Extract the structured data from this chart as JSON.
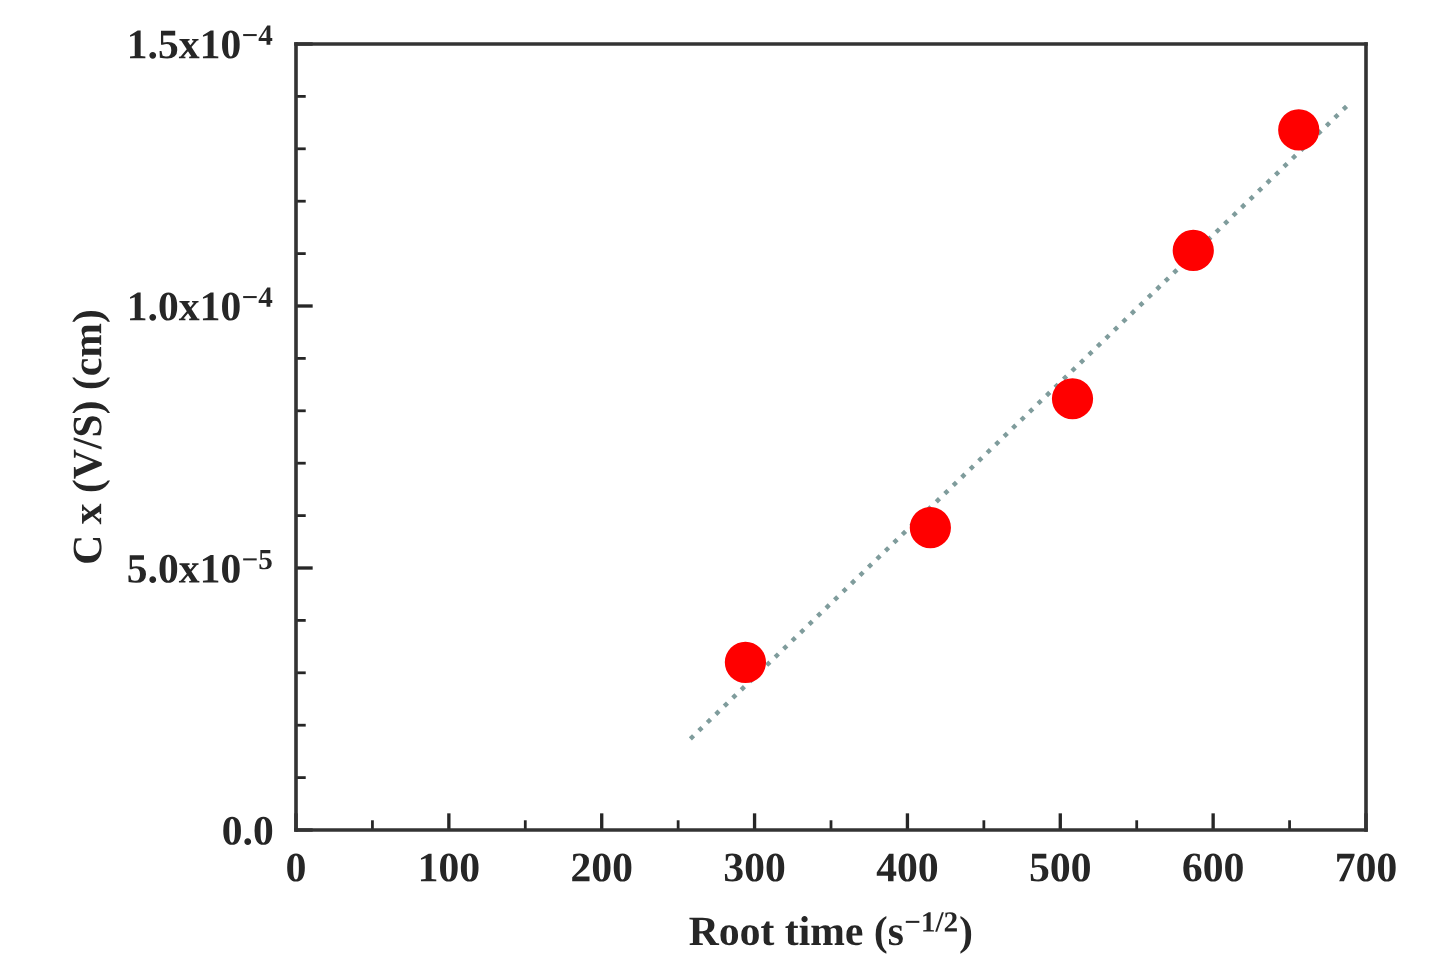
{
  "chart_data": {
    "type": "scatter",
    "xlabel": "Root time (s$^{−1/2}$)",
    "ylabel": "C x (V/S) (cm)",
    "x": [
      294,
      415,
      508,
      587,
      656
    ],
    "series": [
      {
        "color": "#ff0000",
        "marker": "circle",
        "values": [
          3.2e-05,
          5.77e-05,
          8.23e-05,
          0.0001106,
          0.0001336
        ]
      },
      {
        "type": "line",
        "color": "#7f9c9c",
        "line_style": "dotted",
        "marker": "none",
        "x": [
          258,
          688
        ],
        "values": [
          1.74e-05,
          0.0001383
        ]
      }
    ],
    "xlim": [
      0,
      700
    ],
    "ylim": [
      0,
      0.00015
    ],
    "xticks": [
      0,
      {
        "value": 50,
        "label": null
      },
      100,
      {
        "value": 150,
        "label": null
      },
      200,
      {
        "value": 250,
        "label": null
      },
      300,
      {
        "value": 350,
        "label": null
      },
      400,
      {
        "value": 450,
        "label": null
      },
      500,
      {
        "value": 550,
        "label": null
      },
      600,
      {
        "value": 650,
        "label": null
      },
      700
    ],
    "yticks": [
      {
        "value": 0,
        "label": "0.0"
      },
      {
        "value": 1e-05,
        "label": null
      },
      {
        "value": 2e-05,
        "label": null
      },
      {
        "value": 3e-05,
        "label": null
      },
      {
        "value": 4e-05,
        "label": null
      },
      {
        "value": 5e-05,
        "label": "5.0x10$^{−5}$"
      },
      {
        "value": 6e-05,
        "label": null
      },
      {
        "value": 7e-05,
        "label": null
      },
      {
        "value": 8e-05,
        "label": null
      },
      {
        "value": 9e-05,
        "label": null
      },
      {
        "value": 0.0001,
        "label": "1.0x10$^{−4}$"
      },
      {
        "value": 0.00011,
        "label": null
      },
      {
        "value": 0.00012,
        "label": null
      },
      {
        "value": 0.00013,
        "label": null
      },
      {
        "value": 0.00014,
        "label": null
      },
      {
        "value": 0.00015,
        "label": "1.5x10$^{−4}$"
      }
    ],
    "grid": false,
    "legend": false
  }
}
